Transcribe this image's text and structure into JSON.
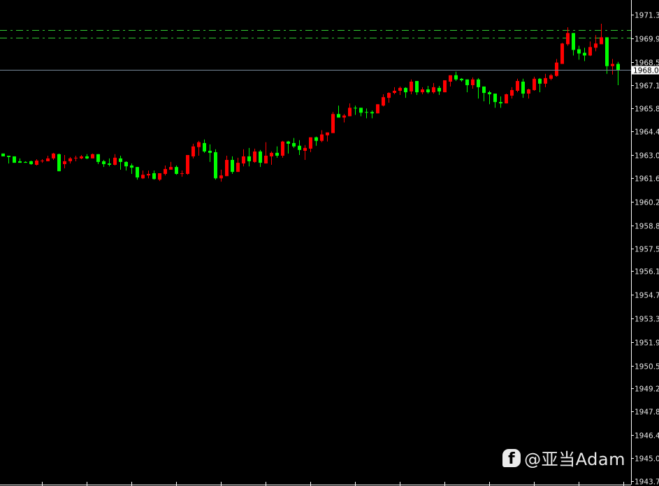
{
  "chart_data": {
    "type": "candlestick",
    "title": "",
    "xlabel": "",
    "ylabel": "",
    "ylim": [
      1943.7,
      1971.35
    ],
    "grid": false,
    "colors": {
      "background": "#000000",
      "up": "#ff0000",
      "down": "#00ff00",
      "axis": "#ffffff",
      "level_line": "#32cd32",
      "bid_line": "#778899",
      "tick_text": "#e8e8e8"
    },
    "y_ticks": [
      "1971.35",
      "1969.95",
      "1968.55",
      "1967.15",
      "1965.80",
      "1964.45",
      "1963.05",
      "1961.65",
      "1960.25",
      "1958.85",
      "1957.50",
      "1956.15",
      "1954.75",
      "1953.35",
      "1951.95",
      "1950.55",
      "1949.20",
      "1947.85",
      "1946.45",
      "1945.05",
      "1943.70"
    ],
    "current_price": "1968.07",
    "level_lines": [
      1970.43,
      1969.97
    ],
    "ohlc_columns": [
      "open",
      "high",
      "low",
      "close"
    ],
    "candles": [
      [
        1963.12,
        1963.12,
        1962.95,
        1962.95
      ],
      [
        1962.99,
        1962.99,
        1962.53,
        1962.91
      ],
      [
        1962.95,
        1962.95,
        1962.57,
        1962.57
      ],
      [
        1962.66,
        1962.83,
        1962.57,
        1962.57
      ],
      [
        1962.62,
        1962.66,
        1962.57,
        1962.57
      ],
      [
        1962.66,
        1962.7,
        1962.45,
        1962.49
      ],
      [
        1962.45,
        1962.78,
        1962.41,
        1962.7
      ],
      [
        1962.66,
        1962.78,
        1962.57,
        1962.7
      ],
      [
        1962.66,
        1962.99,
        1962.66,
        1962.83
      ],
      [
        1962.83,
        1963.16,
        1962.74,
        1963.12
      ],
      [
        1963.08,
        1963.12,
        1962.07,
        1962.07
      ],
      [
        1962.49,
        1963.03,
        1962.24,
        1962.66
      ],
      [
        1962.66,
        1962.91,
        1962.53,
        1962.83
      ],
      [
        1962.83,
        1962.99,
        1962.66,
        1962.87
      ],
      [
        1962.83,
        1963.03,
        1962.78,
        1962.95
      ],
      [
        1962.95,
        1963.08,
        1962.78,
        1962.83
      ],
      [
        1962.83,
        1963.12,
        1962.83,
        1963.08
      ],
      [
        1963.08,
        1963.08,
        1962.49,
        1962.62
      ],
      [
        1962.66,
        1962.74,
        1962.32,
        1962.49
      ],
      [
        1962.53,
        1962.83,
        1962.36,
        1962.45
      ],
      [
        1962.45,
        1963.08,
        1962.41,
        1962.87
      ],
      [
        1962.83,
        1962.99,
        1962.16,
        1962.62
      ],
      [
        1962.62,
        1962.66,
        1962.11,
        1962.36
      ],
      [
        1962.41,
        1962.53,
        1961.91,
        1962.28
      ],
      [
        1962.32,
        1962.32,
        1961.57,
        1961.7
      ],
      [
        1961.65,
        1962.11,
        1961.61,
        1961.86
      ],
      [
        1961.82,
        1962.11,
        1961.65,
        1961.91
      ],
      [
        1961.95,
        1962.11,
        1961.57,
        1961.61
      ],
      [
        1961.57,
        1961.95,
        1961.49,
        1961.95
      ],
      [
        1961.91,
        1962.41,
        1961.82,
        1962.2
      ],
      [
        1962.16,
        1962.62,
        1962.16,
        1962.32
      ],
      [
        1962.32,
        1962.41,
        1961.86,
        1961.91
      ],
      [
        1961.91,
        1962.11,
        1961.74,
        1961.95
      ],
      [
        1961.91,
        1963.03,
        1961.86,
        1963.03
      ],
      [
        1962.95,
        1963.7,
        1962.83,
        1963.54
      ],
      [
        1963.5,
        1963.87,
        1962.99,
        1963.79
      ],
      [
        1963.74,
        1963.95,
        1963.16,
        1963.24
      ],
      [
        1963.28,
        1963.66,
        1962.62,
        1963.16
      ],
      [
        1963.2,
        1963.37,
        1961.57,
        1961.65
      ],
      [
        1961.65,
        1962.16,
        1961.45,
        1961.82
      ],
      [
        1961.78,
        1962.99,
        1961.78,
        1962.74
      ],
      [
        1962.74,
        1962.95,
        1961.91,
        1962.03
      ],
      [
        1962.03,
        1962.87,
        1962.03,
        1962.57
      ],
      [
        1962.53,
        1963.37,
        1962.36,
        1962.95
      ],
      [
        1962.95,
        1963.45,
        1962.36,
        1962.66
      ],
      [
        1962.62,
        1963.41,
        1962.57,
        1963.24
      ],
      [
        1963.24,
        1963.33,
        1962.32,
        1962.57
      ],
      [
        1962.53,
        1963.79,
        1962.53,
        1962.99
      ],
      [
        1962.95,
        1963.24,
        1962.45,
        1963.16
      ],
      [
        1963.16,
        1963.54,
        1962.87,
        1962.99
      ],
      [
        1962.99,
        1963.87,
        1962.87,
        1963.83
      ],
      [
        1963.83,
        1963.87,
        1963.12,
        1963.7
      ],
      [
        1963.74,
        1964.04,
        1963.45,
        1963.54
      ],
      [
        1963.58,
        1963.91,
        1963.03,
        1963.33
      ],
      [
        1963.28,
        1963.62,
        1962.74,
        1963.45
      ],
      [
        1963.41,
        1964.08,
        1963.2,
        1964.08
      ],
      [
        1964.08,
        1964.12,
        1963.58,
        1963.87
      ],
      [
        1963.87,
        1964.5,
        1963.79,
        1964.25
      ],
      [
        1964.2,
        1964.37,
        1963.83,
        1964.37
      ],
      [
        1964.33,
        1965.58,
        1964.33,
        1965.46
      ],
      [
        1965.46,
        1965.96,
        1965.25,
        1965.25
      ],
      [
        1965.25,
        1965.46,
        1964.96,
        1965.37
      ],
      [
        1965.33,
        1966.09,
        1965.33,
        1965.83
      ],
      [
        1965.83,
        1965.96,
        1965.41,
        1965.79
      ],
      [
        1965.83,
        1965.83,
        1965.33,
        1965.54
      ],
      [
        1965.58,
        1965.79,
        1965.21,
        1965.54
      ],
      [
        1965.58,
        1965.67,
        1965.21,
        1965.5
      ],
      [
        1965.5,
        1966.04,
        1965.5,
        1966.04
      ],
      [
        1965.96,
        1966.63,
        1965.91,
        1966.46
      ],
      [
        1966.42,
        1966.75,
        1966.13,
        1966.71
      ],
      [
        1966.71,
        1967.05,
        1966.63,
        1966.84
      ],
      [
        1966.84,
        1967.09,
        1966.59,
        1967.01
      ],
      [
        1967.01,
        1967.05,
        1966.42,
        1966.75
      ],
      [
        1966.8,
        1967.51,
        1966.63,
        1967.38
      ],
      [
        1967.42,
        1967.42,
        1966.59,
        1966.75
      ],
      [
        1966.75,
        1967.05,
        1966.63,
        1966.92
      ],
      [
        1966.92,
        1967.13,
        1966.67,
        1966.75
      ],
      [
        1966.75,
        1967.3,
        1966.67,
        1967.05
      ],
      [
        1967.01,
        1967.13,
        1966.59,
        1966.8
      ],
      [
        1966.75,
        1967.46,
        1966.75,
        1967.46
      ],
      [
        1967.38,
        1967.76,
        1967.09,
        1967.76
      ],
      [
        1967.76,
        1967.97,
        1967.42,
        1967.51
      ],
      [
        1967.55,
        1967.59,
        1967.38,
        1967.46
      ],
      [
        1967.51,
        1967.51,
        1966.75,
        1967.17
      ],
      [
        1967.17,
        1967.63,
        1966.96,
        1967.51
      ],
      [
        1967.51,
        1967.59,
        1966.38,
        1967.05
      ],
      [
        1967.09,
        1967.09,
        1966.21,
        1966.71
      ],
      [
        1966.75,
        1966.84,
        1966.04,
        1966.63
      ],
      [
        1966.67,
        1966.67,
        1965.83,
        1966.17
      ],
      [
        1966.17,
        1966.5,
        1965.83,
        1966.09
      ],
      [
        1966.09,
        1966.67,
        1966.09,
        1966.63
      ],
      [
        1966.55,
        1967.05,
        1966.38,
        1966.88
      ],
      [
        1966.84,
        1967.55,
        1966.75,
        1967.42
      ],
      [
        1967.38,
        1967.55,
        1966.42,
        1966.67
      ],
      [
        1966.67,
        1966.96,
        1966.38,
        1966.92
      ],
      [
        1966.88,
        1967.67,
        1966.84,
        1967.55
      ],
      [
        1967.55,
        1967.59,
        1966.75,
        1967.26
      ],
      [
        1967.26,
        1967.84,
        1967.05,
        1967.59
      ],
      [
        1967.55,
        1967.84,
        1967.46,
        1967.76
      ],
      [
        1967.72,
        1968.72,
        1967.67,
        1968.51
      ],
      [
        1968.43,
        1969.68,
        1968.43,
        1969.64
      ],
      [
        1969.6,
        1970.6,
        1969.51,
        1970.26
      ],
      [
        1970.26,
        1970.26,
        1968.93,
        1969.26
      ],
      [
        1969.3,
        1969.51,
        1968.68,
        1969.05
      ],
      [
        1969.09,
        1969.39,
        1968.6,
        1968.93
      ],
      [
        1968.93,
        1969.76,
        1968.89,
        1969.43
      ],
      [
        1969.39,
        1970.14,
        1969.18,
        1969.64
      ],
      [
        1969.6,
        1970.81,
        1969.6,
        1970.01
      ],
      [
        1970.01,
        1970.01,
        1967.84,
        1968.3
      ],
      [
        1968.3,
        1968.72,
        1967.8,
        1968.43
      ],
      [
        1968.43,
        1968.55,
        1967.17,
        1968.07
      ]
    ]
  },
  "watermark": {
    "icon": "facebook-icon",
    "icon_glyph": "f",
    "text": "@亚当Adam"
  }
}
